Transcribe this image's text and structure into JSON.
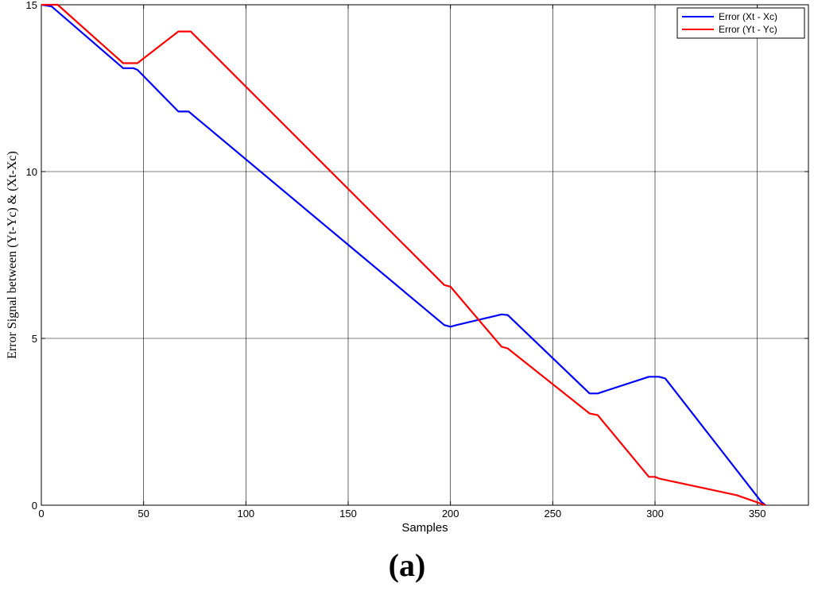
{
  "chart_data": {
    "type": "line",
    "xlabel": "Samples",
    "ylabel": "Error Signal between (Yt-Yc) & (Xt-Xc)",
    "xlim": [
      0,
      375
    ],
    "ylim": [
      0,
      15
    ],
    "xticks": [
      0,
      50,
      100,
      150,
      200,
      250,
      300,
      350
    ],
    "yticks": [
      0,
      5,
      10,
      15
    ],
    "grid": true,
    "legend_position": "top-right",
    "series": [
      {
        "name": "Error (Xt - Xc)",
        "color": "#0000ff",
        "x": [
          0,
          5,
          40,
          45,
          47,
          67,
          72,
          197,
          200,
          203,
          225,
          228,
          268,
          272,
          297,
          302,
          305,
          352,
          354
        ],
        "y": [
          15,
          14.95,
          13.1,
          13.1,
          13.05,
          11.8,
          11.8,
          5.4,
          5.35,
          5.4,
          5.72,
          5.7,
          3.35,
          3.35,
          3.85,
          3.85,
          3.8,
          0.1,
          0
        ]
      },
      {
        "name": "Error (Yt - Yc)",
        "color": "#ff0000",
        "x": [
          0,
          8,
          40,
          47,
          67,
          73,
          197,
          200,
          225,
          228,
          268,
          272,
          297,
          300,
          302,
          340,
          354
        ],
        "y": [
          15,
          15,
          13.25,
          13.25,
          14.2,
          14.2,
          6.6,
          6.55,
          4.75,
          4.7,
          2.75,
          2.7,
          0.85,
          0.85,
          0.8,
          0.3,
          0
        ]
      }
    ]
  },
  "caption": {
    "open": "(",
    "letter": "a",
    "close": ")"
  }
}
